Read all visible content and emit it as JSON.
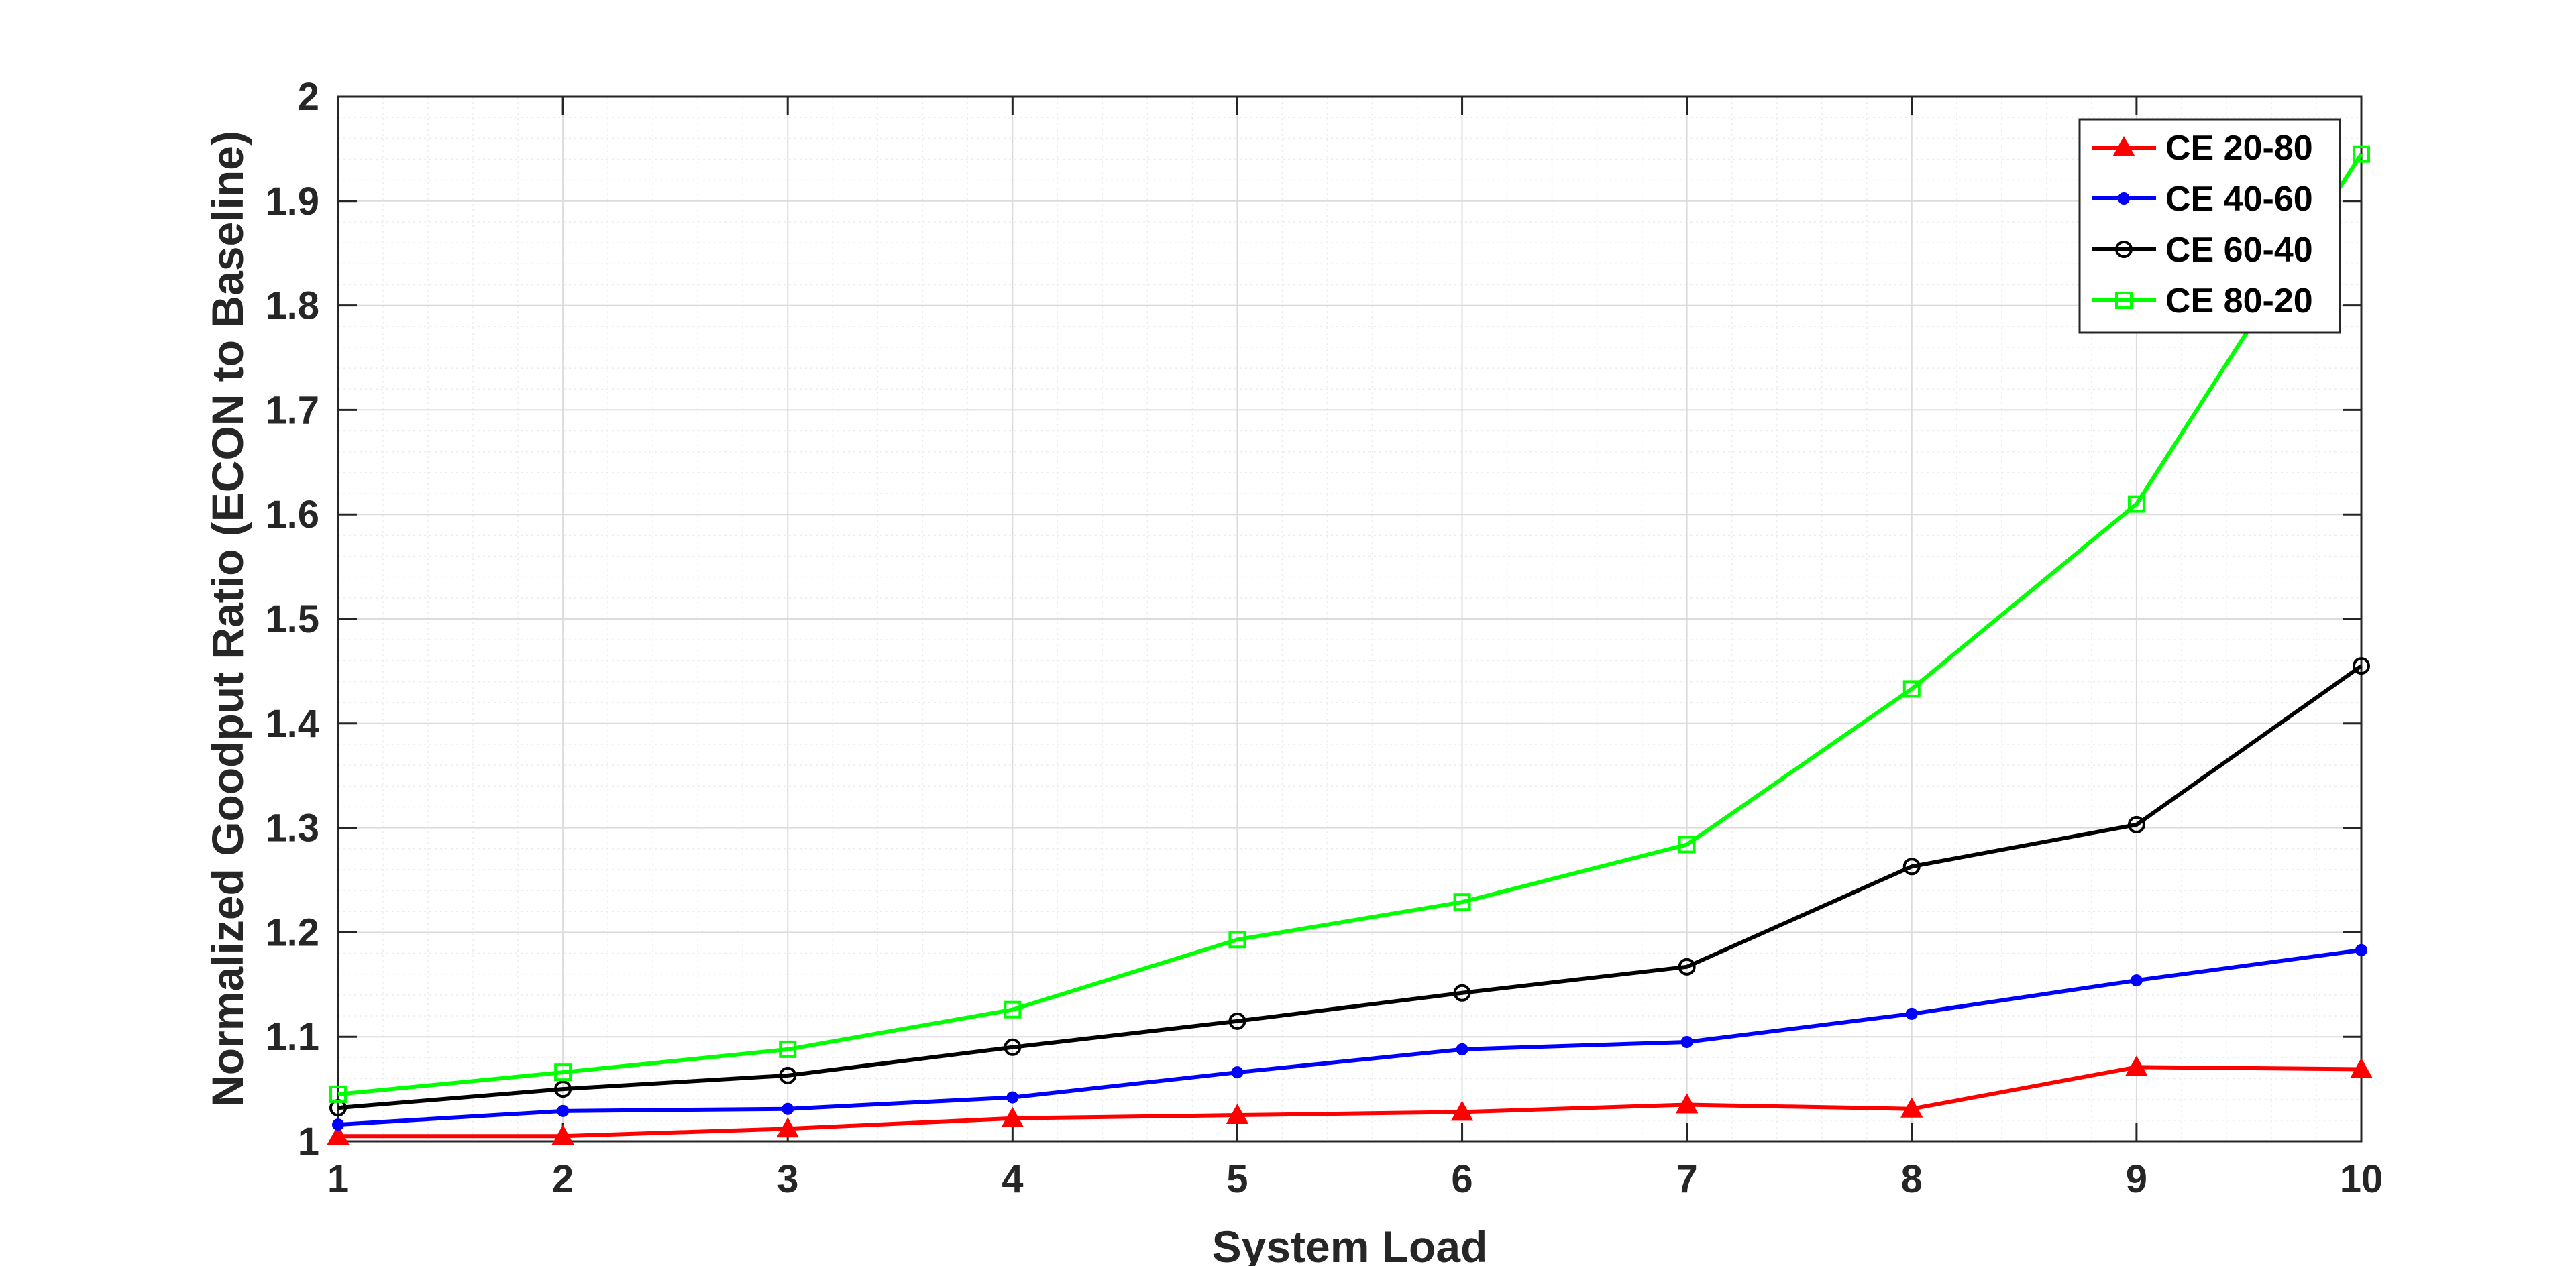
{
  "chart_data": {
    "type": "line",
    "xlabel": "System Load",
    "ylabel": "Normalized Goodput Ratio (ECON to Baseline)",
    "xlim": [
      1,
      10
    ],
    "ylim": [
      1,
      2
    ],
    "xticks": [
      "1",
      "2",
      "3",
      "4",
      "5",
      "6",
      "7",
      "8",
      "9",
      "10"
    ],
    "yticks": [
      "1",
      "1.1",
      "1.2",
      "1.3",
      "1.4",
      "1.5",
      "1.6",
      "1.7",
      "1.8",
      "1.9",
      "2"
    ],
    "grid": true,
    "minor_grid": true,
    "legend_position": "top-right",
    "x": [
      1,
      2,
      3,
      4,
      5,
      6,
      7,
      8,
      9,
      10
    ],
    "series": [
      {
        "name": "CE 20-80",
        "color": "#ff0000",
        "marker": "triangle",
        "values": [
          1.005,
          1.005,
          1.012,
          1.022,
          1.025,
          1.028,
          1.035,
          1.031,
          1.071,
          1.069
        ]
      },
      {
        "name": "CE 40-60",
        "color": "#0000ff",
        "marker": "dot",
        "values": [
          1.016,
          1.029,
          1.031,
          1.042,
          1.066,
          1.088,
          1.095,
          1.122,
          1.154,
          1.183
        ]
      },
      {
        "name": "CE 60-40",
        "color": "#000000",
        "marker": "circle",
        "values": [
          1.032,
          1.05,
          1.063,
          1.09,
          1.115,
          1.142,
          1.167,
          1.263,
          1.303,
          1.455
        ]
      },
      {
        "name": "CE 80-20",
        "color": "#00ff00",
        "marker": "square",
        "values": [
          1.045,
          1.066,
          1.088,
          1.126,
          1.193,
          1.229,
          1.284,
          1.433,
          1.61,
          1.945
        ]
      }
    ]
  }
}
